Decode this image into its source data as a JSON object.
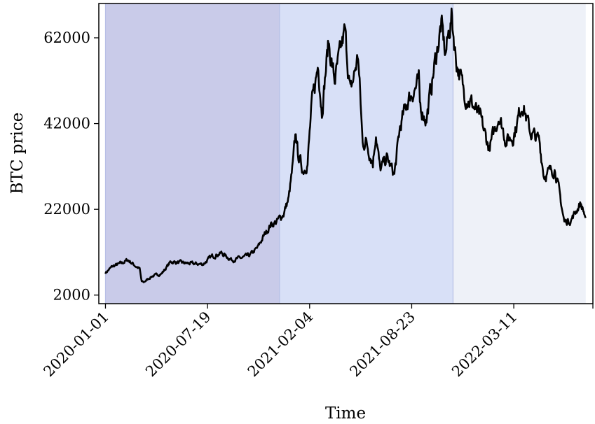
{
  "chart_data": {
    "type": "line",
    "title": "",
    "xlabel": "Time",
    "ylabel": "BTC price",
    "xlim": [
      "2019-12-19",
      "2022-08-13"
    ],
    "ylim": [
      0,
      70000
    ],
    "grid": false,
    "legend": "none",
    "y_ticks": [
      2000,
      22000,
      42000,
      62000
    ],
    "x_ticks": [
      "2020-01-01",
      "2020-07-19",
      "2021-02-04",
      "2021-08-23",
      "2022-03-11"
    ],
    "regions": [
      {
        "start": "2020-01-01",
        "end": "2020-12-07",
        "color": "#c9cbe9"
      },
      {
        "start": "2020-12-07",
        "end": "2021-11-12",
        "color": "#d8e0f7"
      },
      {
        "start": "2021-11-12",
        "end": "2022-07-30",
        "color": "#eef1f8"
      }
    ],
    "series": [
      {
        "color": "#000000",
        "points": [
          [
            "2020-01-01",
            7200
          ],
          [
            "2020-01-15",
            8700
          ],
          [
            "2020-02-01",
            9400
          ],
          [
            "2020-02-14",
            10200
          ],
          [
            "2020-03-01",
            8700
          ],
          [
            "2020-03-08",
            8100
          ],
          [
            "2020-03-12",
            5100
          ],
          [
            "2020-03-16",
            5000
          ],
          [
            "2020-04-01",
            6400
          ],
          [
            "2020-04-20",
            7000
          ],
          [
            "2020-05-08",
            9800
          ],
          [
            "2020-06-01",
            9500
          ],
          [
            "2020-06-20",
            9300
          ],
          [
            "2020-07-10",
            9200
          ],
          [
            "2020-07-27",
            11000
          ],
          [
            "2020-08-15",
            11800
          ],
          [
            "2020-09-05",
            10200
          ],
          [
            "2020-09-25",
            10700
          ],
          [
            "2020-10-10",
            11300
          ],
          [
            "2020-10-25",
            13000
          ],
          [
            "2020-11-05",
            15500
          ],
          [
            "2020-11-20",
            18500
          ],
          [
            "2020-12-01",
            19000
          ],
          [
            "2020-12-15",
            21000
          ],
          [
            "2020-12-25",
            24500
          ],
          [
            "2021-01-02",
            32000
          ],
          [
            "2021-01-08",
            40000
          ],
          [
            "2021-01-12",
            35000
          ],
          [
            "2021-01-22",
            31000
          ],
          [
            "2021-01-31",
            33000
          ],
          [
            "2021-02-08",
            46000
          ],
          [
            "2021-02-21",
            56000
          ],
          [
            "2021-02-28",
            45000
          ],
          [
            "2021-03-13",
            61000
          ],
          [
            "2021-03-25",
            52000
          ],
          [
            "2021-04-14",
            63500
          ],
          [
            "2021-04-25",
            49000
          ],
          [
            "2021-05-10",
            58000
          ],
          [
            "2021-05-19",
            37000
          ],
          [
            "2021-05-25",
            38000
          ],
          [
            "2021-06-08",
            33000
          ],
          [
            "2021-06-14",
            40000
          ],
          [
            "2021-06-22",
            31000
          ],
          [
            "2021-07-05",
            34000
          ],
          [
            "2021-07-20",
            30000
          ],
          [
            "2021-07-31",
            41000
          ],
          [
            "2021-08-14",
            47000
          ],
          [
            "2021-08-23",
            49000
          ],
          [
            "2021-09-06",
            51500
          ],
          [
            "2021-09-08",
            46000
          ],
          [
            "2021-09-21",
            43000
          ],
          [
            "2021-10-06",
            55000
          ],
          [
            "2021-10-20",
            65000
          ],
          [
            "2021-10-28",
            58000
          ],
          [
            "2021-11-09",
            67000
          ],
          [
            "2021-11-18",
            57000
          ],
          [
            "2021-12-04",
            49000
          ],
          [
            "2021-12-20",
            46500
          ],
          [
            "2022-01-05",
            43000
          ],
          [
            "2022-01-22",
            36000
          ],
          [
            "2022-02-10",
            44000
          ],
          [
            "2022-02-24",
            38000
          ],
          [
            "2022-03-10",
            39000
          ],
          [
            "2022-03-28",
            47000
          ],
          [
            "2022-04-12",
            40000
          ],
          [
            "2022-04-30",
            38000
          ],
          [
            "2022-05-09",
            30000
          ],
          [
            "2022-05-31",
            31500
          ],
          [
            "2022-06-13",
            22500
          ],
          [
            "2022-06-18",
            19000
          ],
          [
            "2022-07-01",
            19500
          ],
          [
            "2022-07-20",
            23500
          ],
          [
            "2022-07-30",
            20000
          ]
        ]
      }
    ]
  }
}
